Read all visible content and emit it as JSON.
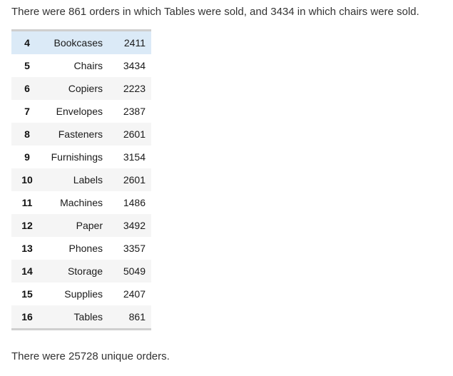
{
  "summary_top": "There were 861 orders in which Tables were sold, and 3434 in which chairs were sold.",
  "summary_bottom": "There were 25728 unique orders.",
  "rows": [
    {
      "index": "4",
      "category": "Bookcases",
      "count": "2411"
    },
    {
      "index": "5",
      "category": "Chairs",
      "count": "3434"
    },
    {
      "index": "6",
      "category": "Copiers",
      "count": "2223"
    },
    {
      "index": "7",
      "category": "Envelopes",
      "count": "2387"
    },
    {
      "index": "8",
      "category": "Fasteners",
      "count": "2601"
    },
    {
      "index": "9",
      "category": "Furnishings",
      "count": "3154"
    },
    {
      "index": "10",
      "category": "Labels",
      "count": "2601"
    },
    {
      "index": "11",
      "category": "Machines",
      "count": "1486"
    },
    {
      "index": "12",
      "category": "Paper",
      "count": "3492"
    },
    {
      "index": "13",
      "category": "Phones",
      "count": "3357"
    },
    {
      "index": "14",
      "category": "Storage",
      "count": "5049"
    },
    {
      "index": "15",
      "category": "Supplies",
      "count": "2407"
    },
    {
      "index": "16",
      "category": "Tables",
      "count": "861"
    }
  ],
  "colors": {
    "highlight_row": "#dbeaf7",
    "stripe_row": "#f5f5f5"
  }
}
